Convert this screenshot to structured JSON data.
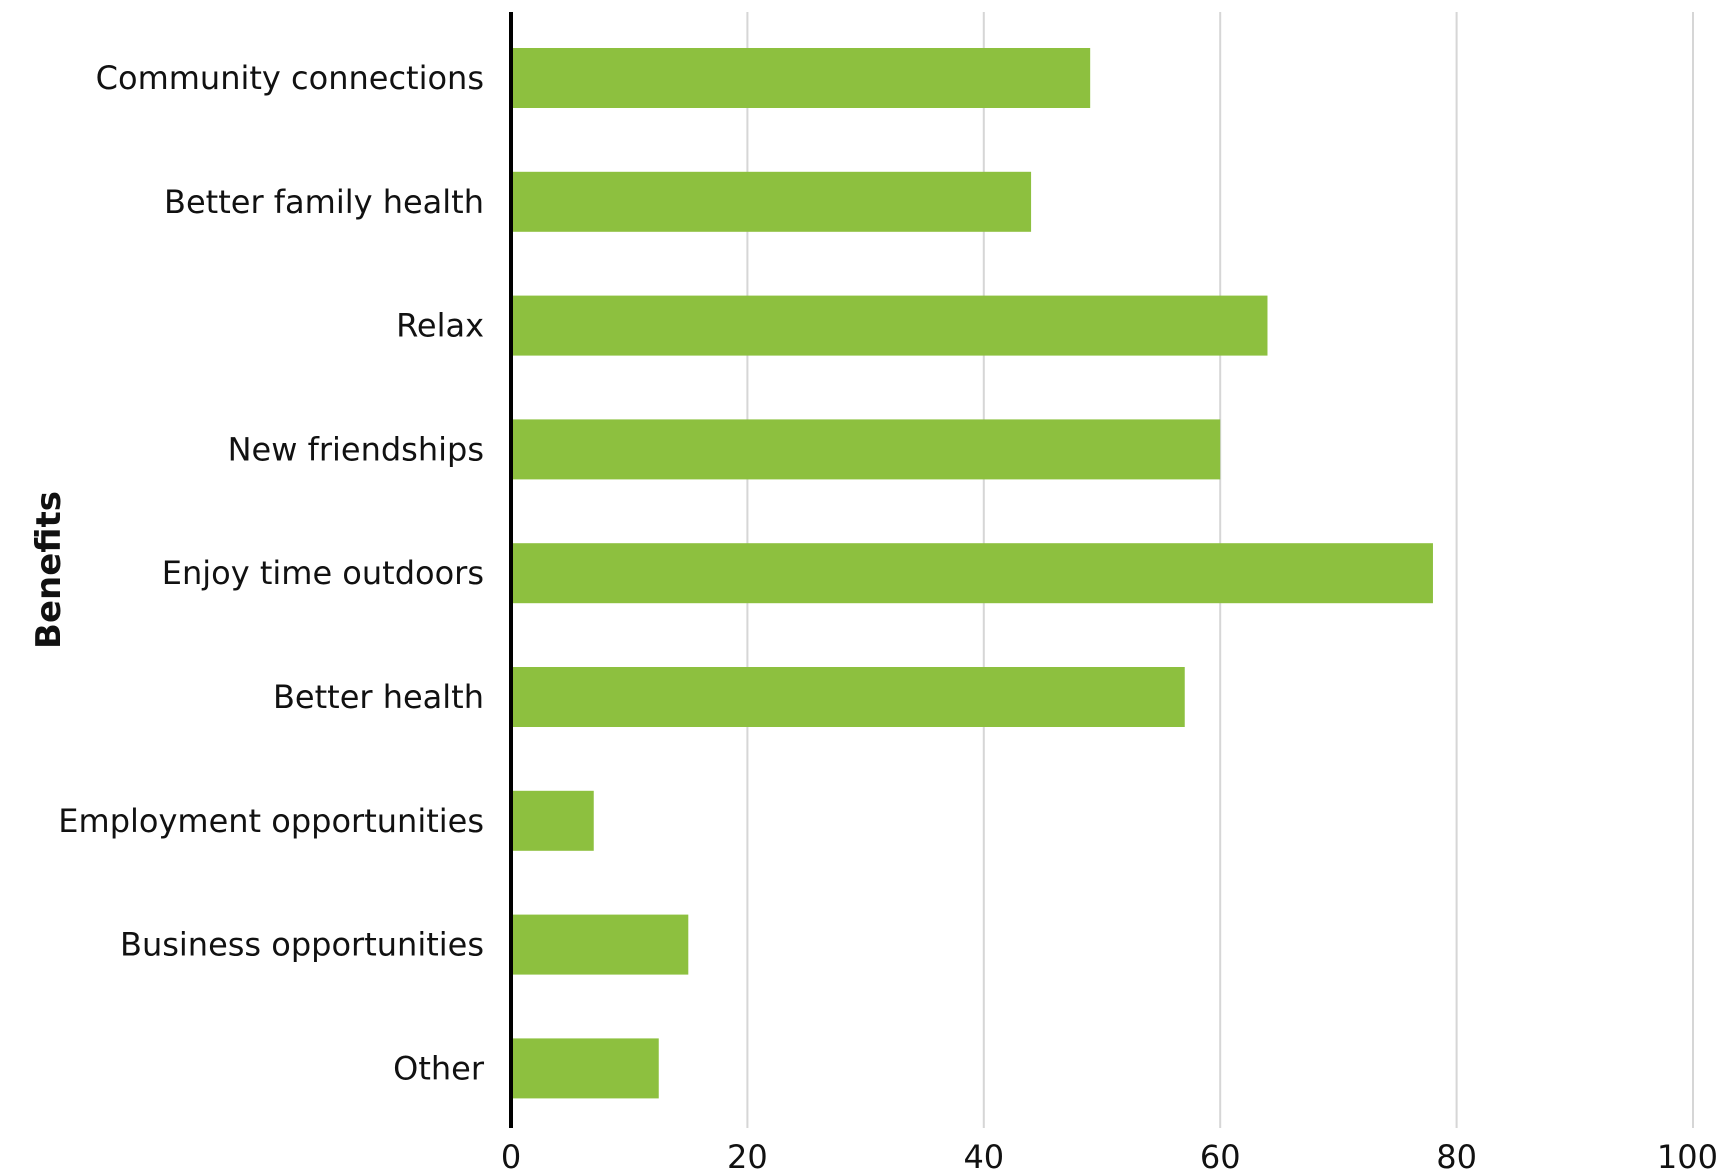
{
  "chart_data": {
    "type": "bar",
    "orientation": "horizontal",
    "categories": [
      "Community connections",
      "Better family health",
      "Relax",
      "New friendships",
      "Enjoy time outdoors",
      "Better health",
      "Employment opportunities",
      "Business opportunities",
      "Other"
    ],
    "values": [
      49,
      44,
      64,
      60,
      78,
      57,
      7,
      15,
      12.5
    ],
    "ylabel": "Benefits",
    "xlabel": "",
    "xlim": [
      0,
      100
    ],
    "xticks": [
      "0",
      "20",
      "40",
      "60",
      "80",
      "100"
    ],
    "grid": true,
    "legend": "none",
    "colors": {
      "bar": "#8dc03f",
      "grid": "#d6d6d6",
      "axis": "#000000"
    }
  }
}
